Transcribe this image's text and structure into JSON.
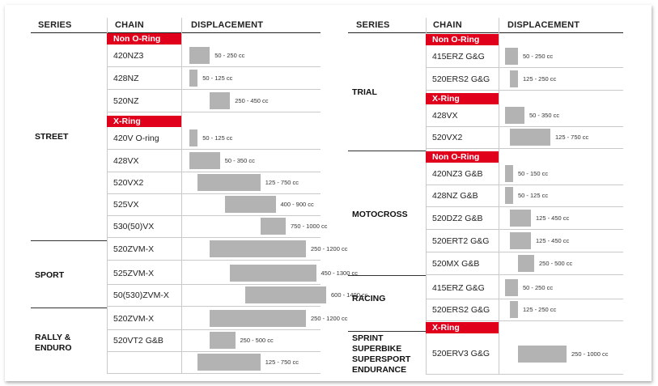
{
  "headers": {
    "series": "SERIES",
    "chain": "CHAIN",
    "displacement": "DISPLACEMENT"
  },
  "left": {
    "series": [
      "STREET",
      "SPORT",
      "RALLY &\nENDURO"
    ],
    "types": [
      "Non O-Ring",
      "X-Ring"
    ],
    "rows": [
      {
        "chain": "420NZ3",
        "range": "50 - 250 cc",
        "min_cc": 50,
        "max_cc": 250
      },
      {
        "chain": "428NZ",
        "range": "50 - 125 cc",
        "min_cc": 50,
        "max_cc": 125
      },
      {
        "chain": "520NZ",
        "range": "250 - 450 cc",
        "min_cc": 250,
        "max_cc": 450
      },
      {
        "chain": "420V O-ring",
        "range": "50 - 125 cc",
        "min_cc": 50,
        "max_cc": 125
      },
      {
        "chain": "428VX",
        "range": "50 - 350 cc",
        "min_cc": 50,
        "max_cc": 350
      },
      {
        "chain": "520VX2",
        "range": "125 - 750 cc",
        "min_cc": 125,
        "max_cc": 750
      },
      {
        "chain": "525VX",
        "range": "400 - 900 cc",
        "min_cc": 400,
        "max_cc": 900
      },
      {
        "chain": "530(50)VX",
        "range": "750 - 1000 cc",
        "min_cc": 750,
        "max_cc": 1000
      },
      {
        "chain": "520ZVM-X",
        "range": "250 - 1200 cc",
        "min_cc": 250,
        "max_cc": 1200
      },
      {
        "chain": "525ZVM-X",
        "range": "450 - 1300 cc",
        "min_cc": 450,
        "max_cc": 1300
      },
      {
        "chain": "50(530)ZVM-X",
        "range": "600 - 1400 cc",
        "min_cc": 600,
        "max_cc": 1400
      },
      {
        "chain": "520ZVM-X",
        "range": "250 - 1200 cc",
        "min_cc": 250,
        "max_cc": 1200
      },
      {
        "chain": "520VT2 G&B",
        "range": "250 - 500 cc",
        "min_cc": 250,
        "max_cc": 500
      },
      {
        "chain": "",
        "range": "125 - 750 cc",
        "min_cc": 125,
        "max_cc": 750
      }
    ]
  },
  "right": {
    "series": [
      "TRIAL",
      "MOTOCROSS",
      "RACING",
      "SPRINT",
      "SUPERBIKE",
      "SUPERSPORT",
      "ENDURANCE"
    ],
    "types": [
      "Non O-Ring",
      "X-Ring",
      "Non O-Ring",
      "X-Ring"
    ],
    "rows": [
      {
        "chain": "415ERZ G&G",
        "range": "50 - 250 cc",
        "min_cc": 50,
        "max_cc": 250
      },
      {
        "chain": "520ERS2 G&G",
        "range": "125 - 250 cc",
        "min_cc": 125,
        "max_cc": 250
      },
      {
        "chain": "428VX",
        "range": "50 - 350 cc",
        "min_cc": 50,
        "max_cc": 350
      },
      {
        "chain": "520VX2",
        "range": "125 - 750 cc",
        "min_cc": 125,
        "max_cc": 750
      },
      {
        "chain": "420NZ3 G&B",
        "range": "50 - 150 cc",
        "min_cc": 50,
        "max_cc": 150
      },
      {
        "chain": "428NZ G&B",
        "range": "50 - 125 cc",
        "min_cc": 50,
        "max_cc": 125
      },
      {
        "chain": "520DZ2 G&B",
        "range": "125 - 450 cc",
        "min_cc": 125,
        "max_cc": 450
      },
      {
        "chain": "520ERT2 G&G",
        "range": "125 - 450 cc",
        "min_cc": 125,
        "max_cc": 450
      },
      {
        "chain": "520MX G&B",
        "range": "250 - 500 cc",
        "min_cc": 250,
        "max_cc": 500
      },
      {
        "chain": "415ERZ G&G",
        "range": "50 - 250 cc",
        "min_cc": 50,
        "max_cc": 250
      },
      {
        "chain": "520ERS2 G&G",
        "range": "125 - 250 cc",
        "min_cc": 125,
        "max_cc": 250
      },
      {
        "chain": "520ERV3 G&G",
        "range": "250 - 1000 cc",
        "min_cc": 250,
        "max_cc": 1000
      }
    ]
  },
  "colors": {
    "accent": "#e0001b",
    "bar": "#b3b3b3"
  }
}
